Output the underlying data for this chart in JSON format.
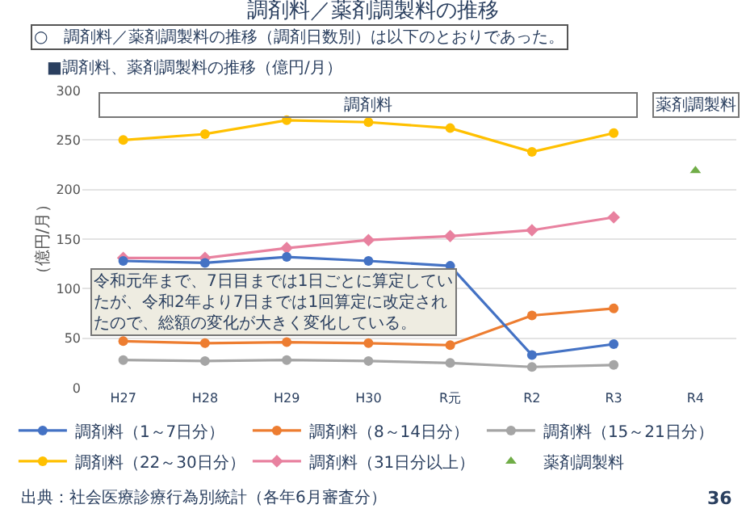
{
  "chart_data": {
    "type": "line",
    "title": "調剤料／薬剤調製料の推移",
    "subtitle": "○　調剤料／薬剤調製料の推移（調剤日数別）は以下のとおりであった。",
    "ylabel": "（億円/月）",
    "categories": [
      "H27",
      "H28",
      "H29",
      "H30",
      "R元",
      "R2",
      "R3",
      "R4"
    ],
    "series": [
      {
        "name": "調剤料（1～7日分）",
        "color": "#4472c4",
        "marker": "circle",
        "values": [
          128,
          126,
          132,
          128,
          123,
          33,
          44,
          null
        ]
      },
      {
        "name": "調剤料（8～14日分）",
        "color": "#ed7d31",
        "marker": "circle",
        "values": [
          47,
          45,
          46,
          45,
          43,
          73,
          80,
          null
        ]
      },
      {
        "name": "調剤料（15～21日分）",
        "color": "#a5a5a5",
        "marker": "circle",
        "values": [
          28,
          27,
          28,
          27,
          25,
          21,
          23,
          null
        ]
      },
      {
        "name": "調剤料（22～30日分）",
        "color": "#ffc000",
        "marker": "circle",
        "values": [
          250,
          256,
          270,
          268,
          262,
          238,
          257,
          null
        ]
      },
      {
        "name": "調剤料（31日分以上）",
        "color": "#e8819f",
        "marker": "diamond",
        "values": [
          131,
          131,
          141,
          149,
          153,
          159,
          172,
          null
        ]
      },
      {
        "name": "薬剤調製料",
        "color": "#70ad47",
        "type": "scatter",
        "marker": "triangle",
        "values": [
          null,
          null,
          null,
          null,
          null,
          null,
          null,
          219
        ]
      }
    ],
    "ylim": [
      0,
      300
    ],
    "yticks": [
      0,
      50,
      100,
      150,
      200,
      250,
      300
    ],
    "grid": "y",
    "legend": "bottom",
    "annotations": [
      "■調剤料、薬剤調製料の推移（億円/月）",
      "調剤料",
      "薬剤調製料",
      "令和元年まで、7日目までは1日ごとに算定していたが、令和2年より7日までは1回算定に改定されたので、総額の変化が大きく変化している。",
      "出典：社会医療診療行為別統計（各年6月審査分）",
      "36"
    ]
  }
}
